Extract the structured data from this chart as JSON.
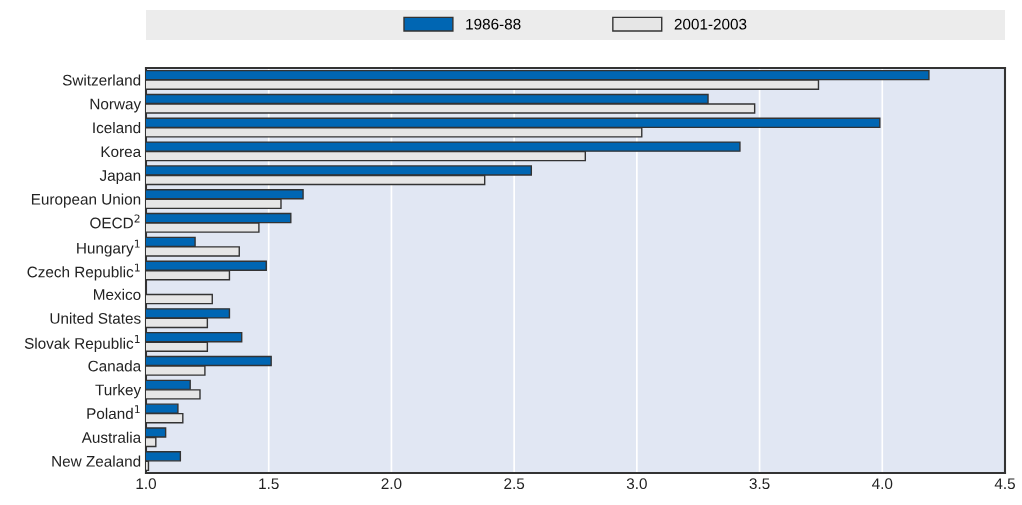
{
  "chart_data": {
    "type": "bar",
    "orientation": "horizontal",
    "categories": [
      "Switzerland",
      "Norway",
      "Iceland",
      "Korea",
      "Japan",
      "European Union",
      "OECD$^{2}$",
      "Hungary$^{1}$",
      "Czech Republic$^{1}$",
      "Mexico",
      "United States",
      "Slovak Republic$^{1}$",
      "Canada",
      "Turkey",
      "Poland$^{1}$",
      "Australia",
      "New Zealand"
    ],
    "series": [
      {
        "name": "1986-88",
        "color": "#0066b3",
        "values": [
          4.19,
          3.29,
          3.99,
          3.42,
          2.57,
          1.64,
          1.59,
          1.2,
          1.49,
          null,
          1.34,
          1.39,
          1.51,
          1.18,
          1.13,
          1.08,
          1.14
        ]
      },
      {
        "name": "2001-2003",
        "color": "#e6e6e6",
        "values": [
          3.74,
          3.48,
          3.02,
          2.79,
          2.38,
          1.55,
          1.46,
          1.38,
          1.34,
          1.27,
          1.25,
          1.25,
          1.24,
          1.22,
          1.15,
          1.04,
          1.01
        ]
      }
    ],
    "xlim": [
      1.0,
      4.5
    ],
    "xticks": [
      {
        "value": 1.0,
        "label": "1.0"
      },
      {
        "value": 1.5,
        "label": "1.5"
      },
      {
        "value": 2.0,
        "label": "2.0"
      },
      {
        "value": 2.5,
        "label": "2.5"
      },
      {
        "value": 3.0,
        "label": "3.0"
      },
      {
        "value": 3.5,
        "label": "3.5"
      },
      {
        "value": 4.0,
        "label": "4.0"
      },
      {
        "value": 4.5,
        "label": "4.5"
      }
    ],
    "grid": "x",
    "legend": "top"
  }
}
